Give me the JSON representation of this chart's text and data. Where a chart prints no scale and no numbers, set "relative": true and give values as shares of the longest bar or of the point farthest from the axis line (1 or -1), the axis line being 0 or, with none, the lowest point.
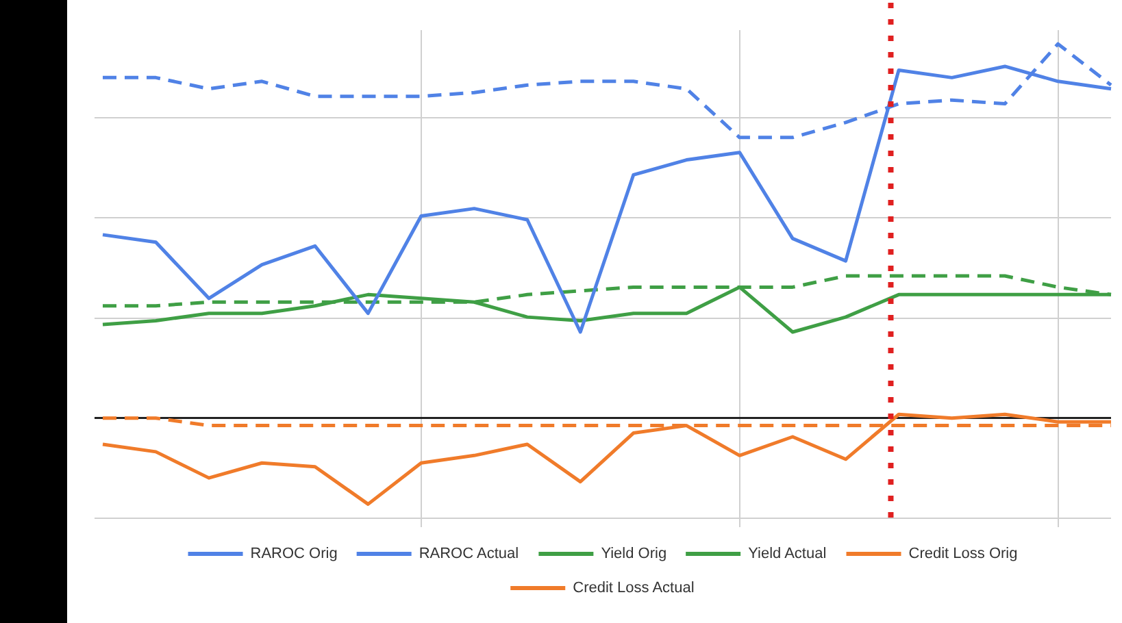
{
  "chart_data": {
    "type": "line",
    "relative": true,
    "categories": [
      null,
      null,
      null,
      null,
      null,
      null,
      null,
      null,
      null,
      null,
      null,
      null,
      null,
      null,
      null,
      null,
      null,
      null,
      null,
      null
    ],
    "marker": "none",
    "grid": true,
    "legend": "bottom",
    "series": [
      {
        "name": "RAROC Orig",
        "color": "#5082e6",
        "line_style": "dashed",
        "values": [
          0.91,
          0.91,
          0.88,
          0.9,
          0.86,
          0.86,
          0.86,
          0.87,
          0.89,
          0.9,
          0.9,
          0.88,
          0.75,
          0.75,
          0.79,
          0.84,
          0.85,
          0.84,
          1,
          0.89
        ]
      },
      {
        "name": "RAROC Actual",
        "color": "#5082e6",
        "line_style": "solid",
        "values": [
          0.49,
          0.47,
          0.32,
          0.41,
          0.46,
          0.28,
          0.54,
          0.56,
          0.53,
          0.23,
          0.65,
          0.69,
          0.71,
          0.48,
          0.42,
          0.93,
          0.91,
          0.94,
          0.9,
          0.88
        ]
      },
      {
        "name": "Yield Orig",
        "color": "#3f9f45",
        "line_style": "dashed",
        "values": [
          0.3,
          0.3,
          0.31,
          0.31,
          0.31,
          0.31,
          0.31,
          0.31,
          0.33,
          0.34,
          0.35,
          0.35,
          0.35,
          0.35,
          0.38,
          0.38,
          0.38,
          0.38,
          0.35,
          0.33
        ]
      },
      {
        "name": "Yield Actual",
        "color": "#3f9f45",
        "line_style": "solid",
        "values": [
          0.25,
          0.26,
          0.28,
          0.28,
          0.3,
          0.33,
          0.32,
          0.31,
          0.27,
          0.26,
          0.28,
          0.28,
          0.35,
          0.23,
          0.27,
          0.33,
          0.33,
          0.33,
          0.33,
          0.33
        ]
      },
      {
        "name": "Credit Loss Orig",
        "color": "#f07b2a",
        "line_style": "dashed",
        "values": [
          0,
          0,
          -0.02,
          -0.02,
          -0.02,
          -0.02,
          -0.02,
          -0.02,
          -0.02,
          -0.02,
          -0.02,
          -0.02,
          -0.02,
          -0.02,
          -0.02,
          -0.02,
          -0.02,
          -0.02,
          -0.02,
          -0.02
        ]
      },
      {
        "name": "Credit Loss Actual",
        "color": "#f07b2a",
        "line_style": "solid",
        "values": [
          -0.07,
          -0.09,
          -0.16,
          -0.12,
          -0.13,
          -0.23,
          -0.12,
          -0.1,
          -0.07,
          -0.17,
          -0.04,
          -0.02,
          -0.1,
          -0.05,
          -0.11,
          0.01,
          0,
          0.01,
          -0.01,
          -0.01
        ]
      }
    ]
  }
}
